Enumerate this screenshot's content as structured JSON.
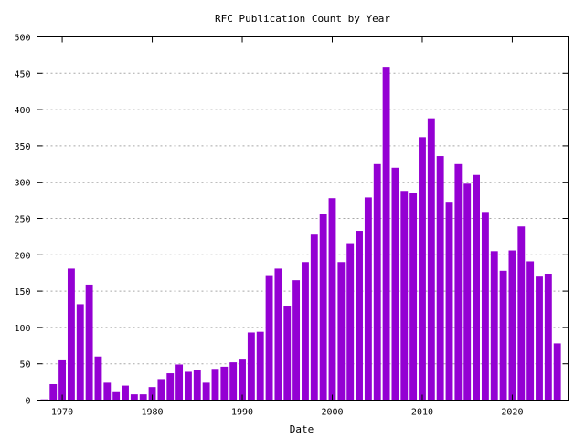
{
  "chart_data": {
    "type": "bar",
    "title": "RFC Publication Count by Year",
    "xlabel": "Date",
    "ylabel": "",
    "ylim": [
      0,
      500
    ],
    "xlim": [
      1967.2,
      2026.2
    ],
    "y_ticks": [
      0,
      50,
      100,
      150,
      200,
      250,
      300,
      350,
      400,
      450,
      500
    ],
    "x_ticks": [
      1970,
      1980,
      1990,
      2000,
      2010,
      2020
    ],
    "grid": true,
    "bar_color": "#9400d3",
    "x": [
      1968,
      1969,
      1970,
      1971,
      1972,
      1973,
      1974,
      1975,
      1976,
      1977,
      1978,
      1979,
      1980,
      1981,
      1982,
      1983,
      1984,
      1985,
      1986,
      1987,
      1988,
      1989,
      1990,
      1991,
      1992,
      1993,
      1994,
      1995,
      1996,
      1997,
      1998,
      1999,
      2000,
      2001,
      2002,
      2003,
      2004,
      2005,
      2006,
      2007,
      2008,
      2009,
      2010,
      2011,
      2012,
      2013,
      2014,
      2015,
      2016,
      2017,
      2018,
      2019,
      2020,
      2021,
      2022,
      2023,
      2024,
      2025
    ],
    "values": [
      1,
      22,
      56,
      181,
      132,
      159,
      60,
      24,
      11,
      20,
      8,
      8,
      18,
      29,
      37,
      49,
      39,
      41,
      24,
      43,
      46,
      52,
      57,
      93,
      94,
      172,
      181,
      130,
      165,
      190,
      229,
      256,
      278,
      190,
      216,
      233,
      279,
      325,
      459,
      320,
      288,
      285,
      362,
      388,
      336,
      273,
      325,
      298,
      310,
      259,
      205,
      178,
      206,
      239,
      191,
      170,
      174,
      78
    ]
  }
}
